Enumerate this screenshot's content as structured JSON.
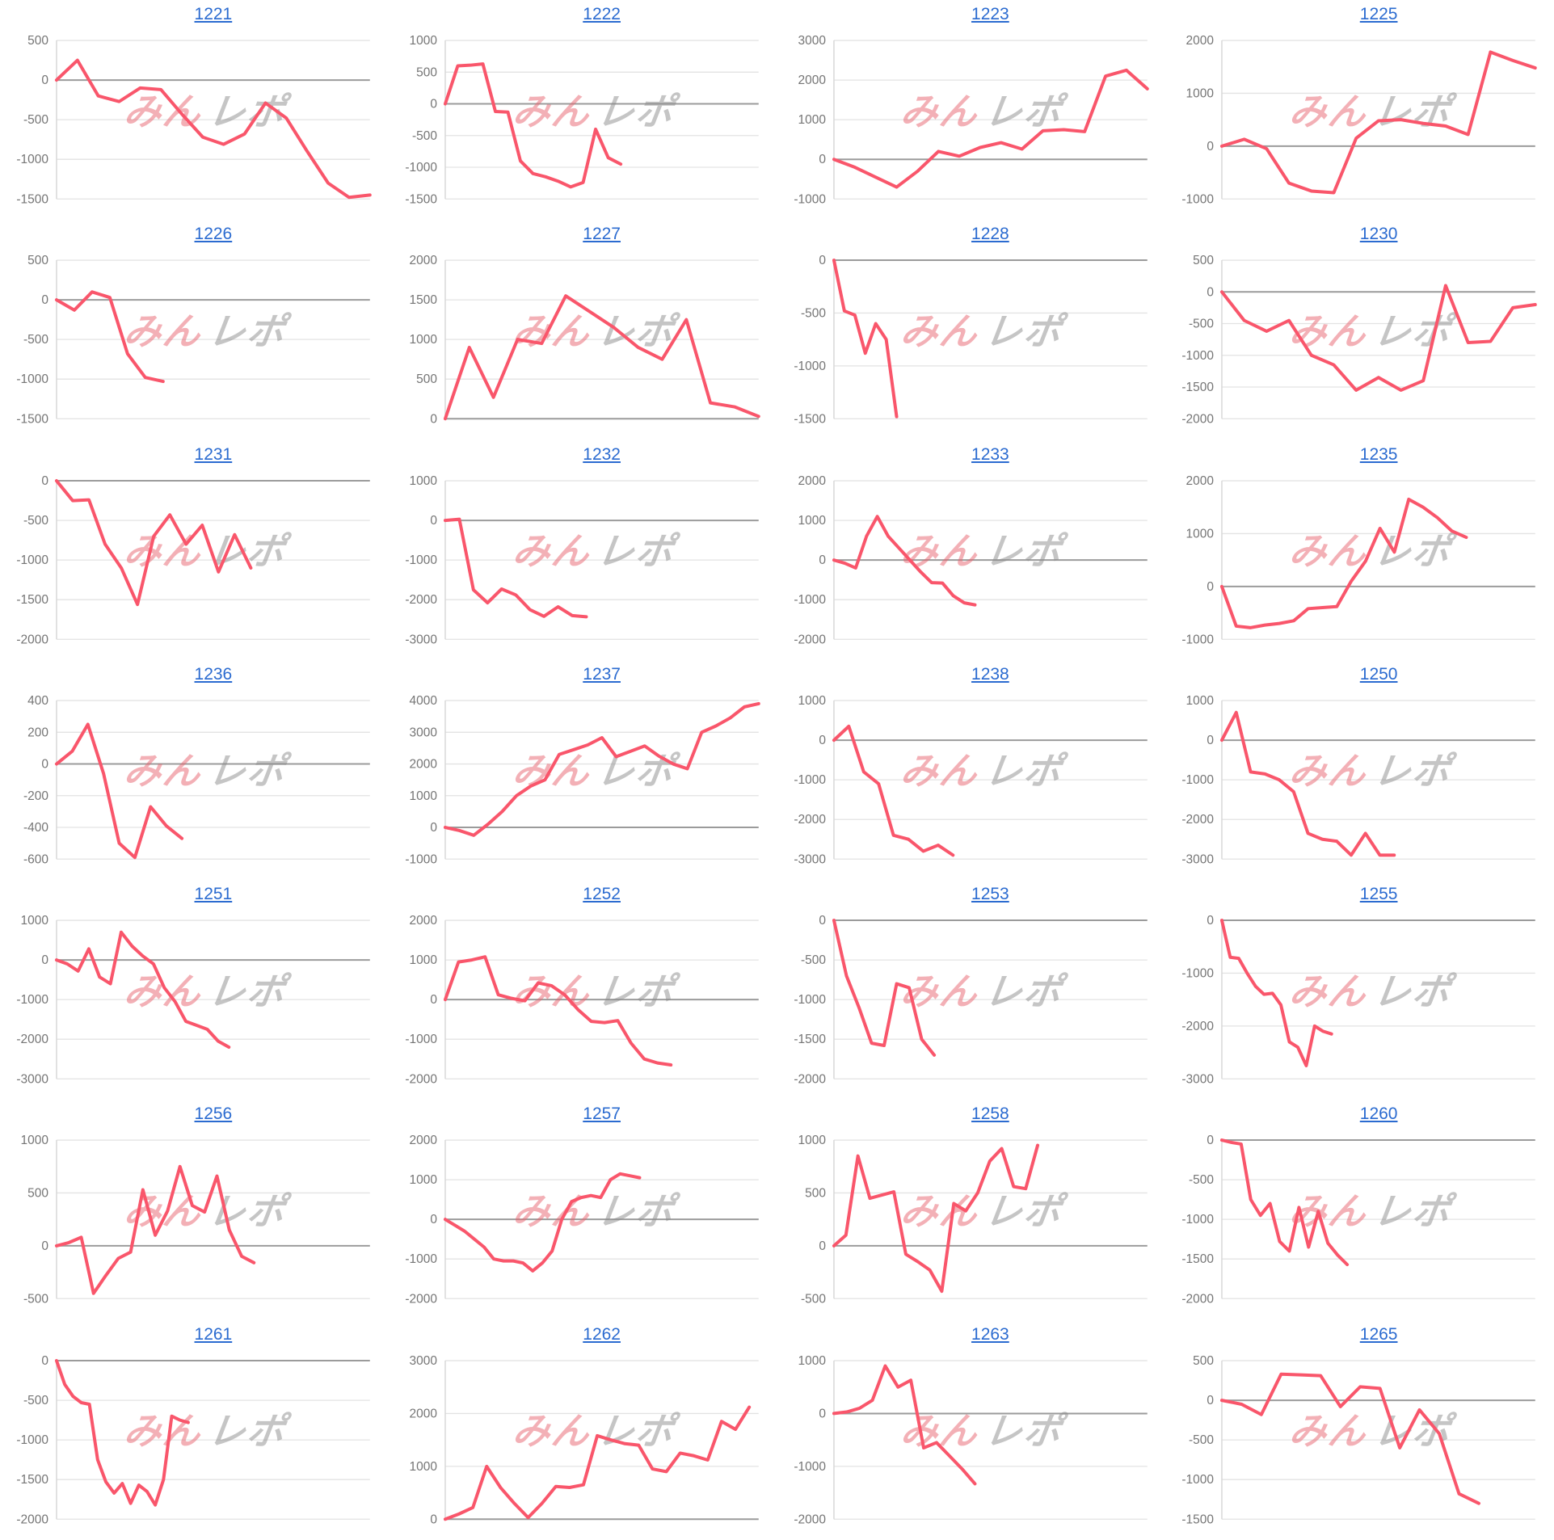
{
  "page": {
    "background": "#ffffff"
  },
  "watermark": {
    "part1": "みん",
    "part2": "レポ",
    "pink": "#e8646f",
    "gray": "#8d8d8d"
  },
  "colors": {
    "title_link": "#2b6bd0",
    "series_line": "#f9566b",
    "gridline": "#e3e3e3",
    "zero_line": "#9b9b9b",
    "axis_line": "#d8d8d8",
    "tick_label": "#757575"
  },
  "chart_data": [
    {
      "type": "line",
      "title": "1221",
      "ylim": [
        -1500,
        500
      ],
      "yticks": [
        500,
        0,
        -500,
        -1000,
        -1500
      ],
      "span": 1.0,
      "values": [
        0,
        250,
        -200,
        -270,
        -100,
        -120,
        -430,
        -720,
        -810,
        -680,
        -290,
        -480,
        -900,
        -1300,
        -1480,
        -1450
      ]
    },
    {
      "type": "line",
      "title": "1222",
      "ylim": [
        -1500,
        1000
      ],
      "yticks": [
        1000,
        500,
        0,
        -500,
        -1000,
        -1500
      ],
      "span": 0.56,
      "values": [
        0,
        600,
        610,
        630,
        -120,
        -130,
        -900,
        -1100,
        -1150,
        -1220,
        -1310,
        -1240,
        -400,
        -850,
        -950
      ]
    },
    {
      "type": "line",
      "title": "1223",
      "ylim": [
        -1000,
        3000
      ],
      "yticks": [
        3000,
        2000,
        1000,
        0,
        -1000
      ],
      "span": 1.0,
      "values": [
        0,
        -200,
        -450,
        -700,
        -300,
        200,
        80,
        300,
        420,
        260,
        720,
        750,
        700,
        2100,
        2250,
        1780
      ]
    },
    {
      "type": "line",
      "title": "1225",
      "ylim": [
        -1000,
        2000
      ],
      "yticks": [
        2000,
        1000,
        0,
        -1000
      ],
      "span": 1.0,
      "values": [
        0,
        130,
        -50,
        -700,
        -850,
        -880,
        150,
        480,
        500,
        430,
        380,
        220,
        1780,
        1620,
        1480
      ]
    },
    {
      "type": "line",
      "title": "1226",
      "ylim": [
        -1500,
        500
      ],
      "yticks": [
        500,
        0,
        -500,
        -1000,
        -1500
      ],
      "span": 0.34,
      "values": [
        0,
        -130,
        100,
        30,
        -680,
        -980,
        -1030
      ]
    },
    {
      "type": "line",
      "title": "1227",
      "ylim": [
        0,
        2000
      ],
      "yticks": [
        2000,
        1500,
        1000,
        500,
        0
      ],
      "span": 1.0,
      "values": [
        0,
        900,
        270,
        1000,
        950,
        1550,
        1350,
        1150,
        900,
        750,
        1250,
        200,
        150,
        30
      ]
    },
    {
      "type": "line",
      "title": "1228",
      "ylim": [
        -1500,
        0
      ],
      "yticks": [
        0,
        -500,
        -1000,
        -1500
      ],
      "span": 0.2,
      "values": [
        0,
        -480,
        -520,
        -880,
        -600,
        -750,
        -1480
      ]
    },
    {
      "type": "line",
      "title": "1230",
      "ylim": [
        -2000,
        500
      ],
      "yticks": [
        500,
        0,
        -500,
        -1000,
        -1500,
        -2000
      ],
      "span": 1.0,
      "values": [
        0,
        -450,
        -620,
        -450,
        -1000,
        -1150,
        -1550,
        -1350,
        -1550,
        -1400,
        100,
        -800,
        -780,
        -250,
        -200
      ]
    },
    {
      "type": "line",
      "title": "1231",
      "ylim": [
        -2000,
        0
      ],
      "yticks": [
        0,
        -500,
        -1000,
        -1500,
        -2000
      ],
      "span": 0.62,
      "values": [
        0,
        -250,
        -240,
        -800,
        -1100,
        -1560,
        -700,
        -430,
        -800,
        -560,
        -1150,
        -680,
        -1100
      ]
    },
    {
      "type": "line",
      "title": "1232",
      "ylim": [
        -3000,
        1000
      ],
      "yticks": [
        1000,
        0,
        -1000,
        -2000,
        -3000
      ],
      "span": 0.45,
      "values": [
        0,
        30,
        -1750,
        -2080,
        -1730,
        -1880,
        -2250,
        -2420,
        -2180,
        -2400,
        -2430
      ]
    },
    {
      "type": "line",
      "title": "1233",
      "ylim": [
        -2000,
        2000
      ],
      "yticks": [
        2000,
        1000,
        0,
        -1000,
        -2000
      ],
      "span": 0.45,
      "values": [
        0,
        -80,
        -200,
        600,
        1100,
        600,
        300,
        0,
        -300,
        -570,
        -580,
        -900,
        -1080,
        -1130
      ]
    },
    {
      "type": "line",
      "title": "1235",
      "ylim": [
        -1000,
        2000
      ],
      "yticks": [
        2000,
        1000,
        0,
        -1000
      ],
      "span": 0.78,
      "values": [
        0,
        -750,
        -780,
        -730,
        -700,
        -650,
        -420,
        -400,
        -380,
        100,
        480,
        1100,
        650,
        1650,
        1500,
        1300,
        1050,
        930
      ]
    },
    {
      "type": "line",
      "title": "1236",
      "ylim": [
        -600,
        400
      ],
      "yticks": [
        400,
        200,
        0,
        -200,
        -400,
        -600
      ],
      "span": 0.4,
      "values": [
        0,
        80,
        250,
        -60,
        -500,
        -590,
        -270,
        -390,
        -470
      ]
    },
    {
      "type": "line",
      "title": "1237",
      "ylim": [
        -1000,
        4000
      ],
      "yticks": [
        4000,
        3000,
        2000,
        1000,
        0,
        -1000
      ],
      "span": 1.0,
      "values": [
        0,
        -100,
        -250,
        100,
        500,
        1000,
        1300,
        1500,
        2300,
        2450,
        2600,
        2830,
        2230,
        2400,
        2570,
        2250,
        2000,
        1850,
        3000,
        3200,
        3450,
        3800,
        3900
      ]
    },
    {
      "type": "line",
      "title": "1238",
      "ylim": [
        -3000,
        1000
      ],
      "yticks": [
        1000,
        0,
        -1000,
        -2000,
        -3000
      ],
      "span": 0.38,
      "values": [
        0,
        350,
        -800,
        -1100,
        -2400,
        -2500,
        -2800,
        -2650,
        -2900
      ]
    },
    {
      "type": "line",
      "title": "1250",
      "ylim": [
        -3000,
        1000
      ],
      "yticks": [
        1000,
        0,
        -1000,
        -2000,
        -3000
      ],
      "span": 0.55,
      "values": [
        0,
        700,
        -800,
        -850,
        -1000,
        -1300,
        -2350,
        -2500,
        -2550,
        -2900,
        -2350,
        -2900,
        -2900
      ]
    },
    {
      "type": "line",
      "title": "1251",
      "ylim": [
        -3000,
        1000
      ],
      "yticks": [
        1000,
        0,
        -1000,
        -2000,
        -3000
      ],
      "span": 0.55,
      "values": [
        0,
        -100,
        -280,
        280,
        -430,
        -600,
        700,
        350,
        100,
        -100,
        -700,
        -1050,
        -1550,
        -1650,
        -1750,
        -2050,
        -2200
      ]
    },
    {
      "type": "line",
      "title": "1252",
      "ylim": [
        -2000,
        2000
      ],
      "yticks": [
        2000,
        1000,
        0,
        -1000,
        -2000
      ],
      "span": 0.72,
      "values": [
        0,
        950,
        1000,
        1080,
        120,
        30,
        -30,
        420,
        350,
        120,
        -250,
        -550,
        -580,
        -530,
        -1100,
        -1500,
        -1600,
        -1650
      ]
    },
    {
      "type": "line",
      "title": "1253",
      "ylim": [
        -2000,
        0
      ],
      "yticks": [
        0,
        -500,
        -1000,
        -1500,
        -2000
      ],
      "span": 0.32,
      "values": [
        0,
        -700,
        -1100,
        -1550,
        -1580,
        -800,
        -850,
        -1500,
        -1700
      ]
    },
    {
      "type": "line",
      "title": "1255",
      "ylim": [
        -3000,
        0
      ],
      "yticks": [
        0,
        -1000,
        -2000,
        -3000
      ],
      "span": 0.35,
      "values": [
        0,
        -700,
        -720,
        -1000,
        -1250,
        -1400,
        -1380,
        -1600,
        -2300,
        -2400,
        -2750,
        -2000,
        -2100,
        -2150
      ]
    },
    {
      "type": "line",
      "title": "1256",
      "ylim": [
        -500,
        1000
      ],
      "yticks": [
        1000,
        500,
        0,
        -500
      ],
      "span": 0.63,
      "values": [
        0,
        30,
        80,
        -450,
        -280,
        -120,
        -60,
        530,
        100,
        330,
        750,
        380,
        320,
        660,
        150,
        -100,
        -160
      ]
    },
    {
      "type": "line",
      "title": "1257",
      "ylim": [
        -2000,
        2000
      ],
      "yticks": [
        2000,
        1000,
        0,
        -1000,
        -2000
      ],
      "span": 0.62,
      "values": [
        0,
        -150,
        -300,
        -500,
        -700,
        -1000,
        -1050,
        -1050,
        -1100,
        -1300,
        -1100,
        -800,
        0,
        450,
        550,
        600,
        550,
        1000,
        1150,
        1100,
        1050
      ]
    },
    {
      "type": "line",
      "title": "1258",
      "ylim": [
        -500,
        1000
      ],
      "yticks": [
        1000,
        500,
        0,
        -500
      ],
      "span": 0.65,
      "values": [
        0,
        100,
        850,
        450,
        480,
        510,
        -80,
        -150,
        -230,
        -430,
        400,
        330,
        500,
        800,
        920,
        560,
        540,
        950
      ]
    },
    {
      "type": "line",
      "title": "1260",
      "ylim": [
        -2000,
        0
      ],
      "yticks": [
        0,
        -500,
        -1000,
        -1500,
        -2000
      ],
      "span": 0.4,
      "values": [
        0,
        -30,
        -50,
        -750,
        -950,
        -800,
        -1280,
        -1400,
        -850,
        -1350,
        -900,
        -1300,
        -1450,
        -1570
      ]
    },
    {
      "type": "line",
      "title": "1261",
      "ylim": [
        -2000,
        0
      ],
      "yticks": [
        0,
        -500,
        -1000,
        -1500,
        -2000
      ],
      "span": 0.42,
      "values": [
        0,
        -300,
        -450,
        -530,
        -550,
        -1250,
        -1530,
        -1670,
        -1550,
        -1800,
        -1570,
        -1650,
        -1820,
        -1500,
        -700,
        -750,
        -780
      ]
    },
    {
      "type": "line",
      "title": "1262",
      "ylim": [
        0,
        3000
      ],
      "yticks": [
        3000,
        2000,
        1000,
        0
      ],
      "span": 0.97,
      "values": [
        0,
        100,
        220,
        1000,
        600,
        300,
        30,
        300,
        620,
        600,
        650,
        1580,
        1500,
        1430,
        1400,
        950,
        900,
        1250,
        1200,
        1120,
        1850,
        1700,
        2120
      ]
    },
    {
      "type": "line",
      "title": "1263",
      "ylim": [
        -2000,
        1000
      ],
      "yticks": [
        1000,
        0,
        -1000,
        -2000
      ],
      "span": 0.45,
      "values": [
        0,
        30,
        100,
        250,
        900,
        500,
        630,
        -650,
        -550,
        -800,
        -1050,
        -1330
      ]
    },
    {
      "type": "line",
      "title": "1265",
      "ylim": [
        -1500,
        500
      ],
      "yticks": [
        500,
        0,
        -500,
        -1000,
        -1500
      ],
      "span": 0.82,
      "values": [
        0,
        -50,
        -180,
        330,
        320,
        310,
        -80,
        170,
        150,
        -600,
        -120,
        -420,
        -1180,
        -1300
      ]
    }
  ]
}
